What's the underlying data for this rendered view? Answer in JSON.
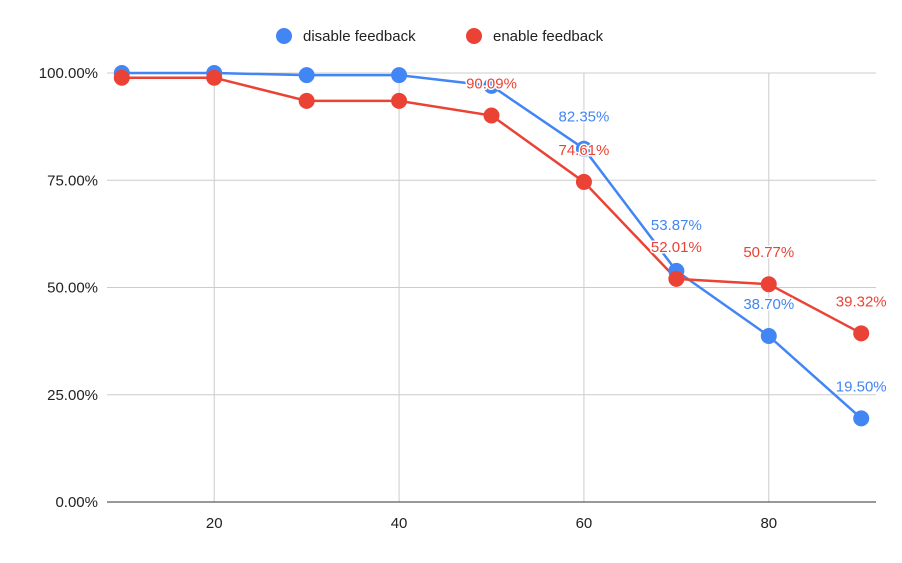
{
  "chart_data": {
    "type": "line",
    "title": "",
    "xlabel": "",
    "ylabel": "",
    "x": [
      10,
      20,
      30,
      40,
      50,
      60,
      70,
      80,
      90
    ],
    "xlim": [
      8.4,
      91.6
    ],
    "ylim": [
      0,
      100
    ],
    "x_ticks": [
      20,
      40,
      60,
      80
    ],
    "x_tick_labels": [
      "20",
      "40",
      "60",
      "80"
    ],
    "y_ticks": [
      0,
      25,
      50,
      75,
      100
    ],
    "y_tick_labels": [
      "0.00%",
      "25.00%",
      "50.00%",
      "75.00%",
      "100.00%"
    ],
    "grid": true,
    "legend": "top",
    "series": [
      {
        "name": "disable feedback",
        "color": "#4285f4",
        "values": [
          100,
          100,
          99.5,
          99.5,
          97,
          82.35,
          53.87,
          38.7,
          19.5
        ],
        "data_labels": [
          null,
          null,
          null,
          null,
          null,
          "82.35%",
          "53.87%",
          "38.70%",
          "19.50%"
        ]
      },
      {
        "name": "enable feedback",
        "color": "#ea4335",
        "values": [
          98.9,
          98.9,
          93.5,
          93.5,
          90.09,
          74.61,
          52.01,
          50.77,
          39.32
        ],
        "data_labels": [
          null,
          null,
          null,
          null,
          "90.09%",
          "74.61%",
          "52.01%",
          "50.77%",
          "39.32%"
        ]
      }
    ]
  }
}
